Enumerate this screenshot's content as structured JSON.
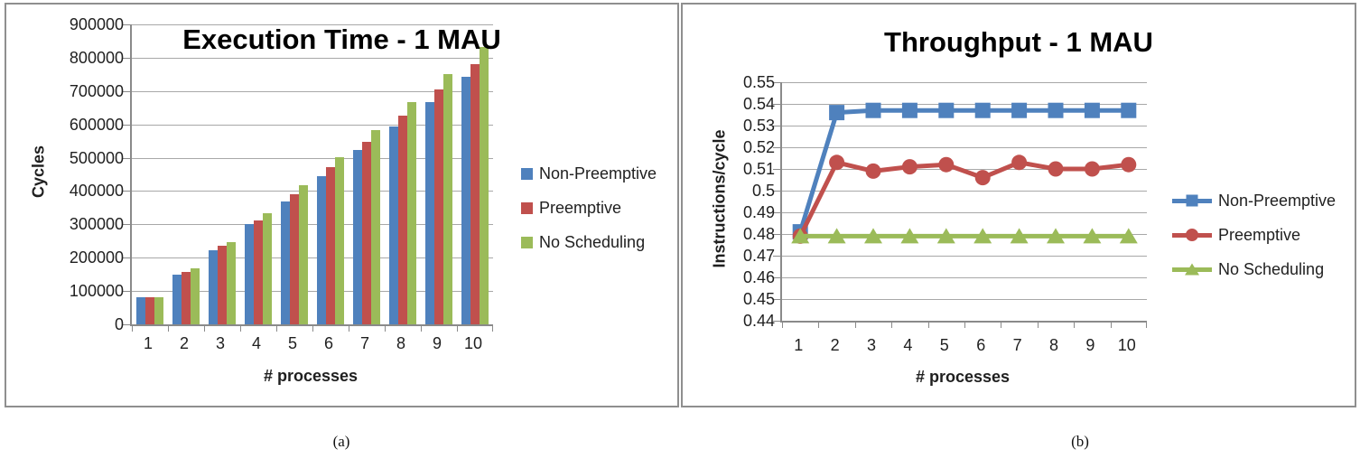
{
  "figure": {
    "caption_a": "(a)",
    "caption_b": "(b)"
  },
  "colors": {
    "non_preemptive": "#4F81BD",
    "preemptive": "#C0504D",
    "no_scheduling": "#9BBB59",
    "gridline": "#A8A8A8",
    "axis_line": "#8A8A8A",
    "panel_border": "#8F8F8F",
    "title_text": "#000000",
    "label_text": "#1F1F1F"
  },
  "chart_data": [
    {
      "type": "bar",
      "title": "Execution Time - 1 MAU",
      "xlabel": "# processes",
      "ylabel": "Cycles",
      "categories": [
        "1",
        "2",
        "3",
        "4",
        "5",
        "6",
        "7",
        "8",
        "9",
        "10"
      ],
      "y_ticks": [
        "900000",
        "800000",
        "700000",
        "600000",
        "500000",
        "400000",
        "300000",
        "200000",
        "100000",
        "0"
      ],
      "ylim": [
        0,
        900000
      ],
      "grid": true,
      "legend_position": "right",
      "series": [
        {
          "name": "Non-Preemptive",
          "color": "#4F81BD",
          "values": [
            82000,
            148000,
            221000,
            300000,
            370000,
            445000,
            523000,
            595000,
            666000,
            743000
          ]
        },
        {
          "name": "Preemptive",
          "color": "#C0504D",
          "values": [
            82000,
            156000,
            236000,
            312000,
            390000,
            472000,
            547000,
            627000,
            704000,
            780000
          ]
        },
        {
          "name": "No Scheduling",
          "color": "#9BBB59",
          "values": [
            82000,
            168000,
            248000,
            334000,
            417000,
            501000,
            583000,
            667000,
            750000,
            833000
          ]
        }
      ]
    },
    {
      "type": "line",
      "title": "Throughput - 1 MAU",
      "xlabel": "# processes",
      "ylabel": "Instructions/cycle",
      "categories": [
        "1",
        "2",
        "3",
        "4",
        "5",
        "6",
        "7",
        "8",
        "9",
        "10"
      ],
      "y_ticks": [
        "0.55",
        "0.54",
        "0.53",
        "0.52",
        "0.51",
        "0.5",
        "0.49",
        "0.48",
        "0.47",
        "0.46",
        "0.45",
        "0.44"
      ],
      "ylim": [
        0.44,
        0.55
      ],
      "grid": true,
      "legend_position": "right",
      "series": [
        {
          "name": "Non-Preemptive",
          "color": "#4F81BD",
          "marker": "square",
          "values": [
            0.481,
            0.536,
            0.537,
            0.537,
            0.537,
            0.537,
            0.537,
            0.537,
            0.537,
            0.537
          ]
        },
        {
          "name": "Preemptive",
          "color": "#C0504D",
          "marker": "circle",
          "values": [
            0.479,
            0.513,
            0.509,
            0.511,
            0.512,
            0.506,
            0.513,
            0.51,
            0.51,
            0.512
          ]
        },
        {
          "name": "No Scheduling",
          "color": "#9BBB59",
          "marker": "triangle",
          "values": [
            0.479,
            0.479,
            0.479,
            0.479,
            0.479,
            0.479,
            0.479,
            0.479,
            0.479,
            0.479
          ]
        }
      ]
    }
  ]
}
